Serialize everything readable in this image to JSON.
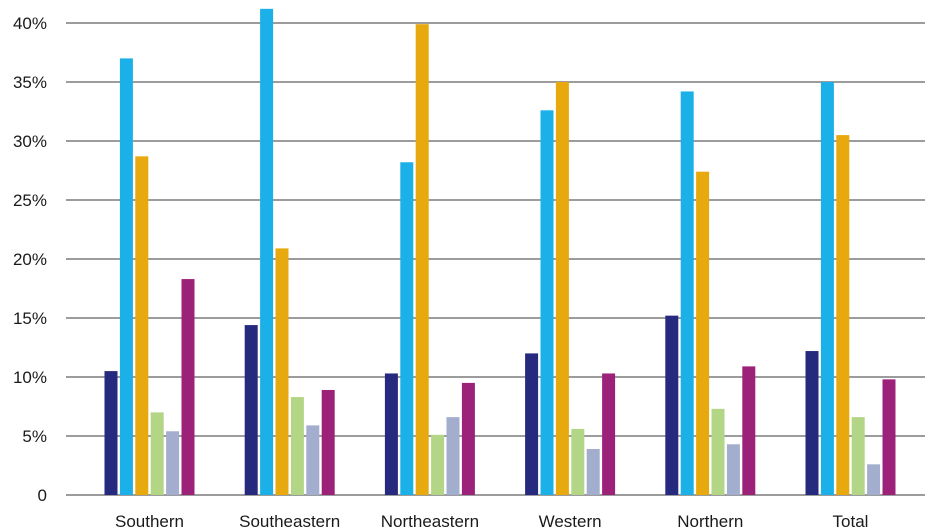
{
  "chart_data": {
    "type": "bar",
    "categories": [
      "Southern",
      "Southeastern",
      "Northeastern",
      "Western",
      "Northern",
      "Total"
    ],
    "y_tick_labels": [
      "0",
      "5%",
      "10%",
      "15%",
      "20%",
      "25%",
      "30%",
      "35%",
      "40%"
    ],
    "y_tick_values": [
      0,
      5,
      10,
      15,
      20,
      25,
      30,
      35,
      40
    ],
    "ylim": [
      0,
      40
    ],
    "grid": true,
    "legend": "none",
    "series": [
      {
        "color": "#262a7e",
        "values": [
          10.5,
          14.4,
          10.3,
          12.0,
          15.2,
          12.2
        ]
      },
      {
        "color": "#1bb1e8",
        "values": [
          37.0,
          41.2,
          28.2,
          32.6,
          34.2,
          35.0
        ]
      },
      {
        "color": "#e8a90e",
        "values": [
          28.7,
          20.9,
          39.9,
          35.0,
          27.4,
          30.5
        ]
      },
      {
        "color": "#b2d586",
        "values": [
          7.0,
          8.3,
          5.1,
          5.6,
          7.3,
          6.6
        ]
      },
      {
        "color": "#a3aece",
        "values": [
          5.4,
          5.9,
          6.6,
          3.9,
          4.3,
          2.6
        ]
      },
      {
        "color": "#9c2279",
        "values": [
          18.3,
          8.9,
          9.5,
          10.3,
          10.9,
          9.8
        ]
      }
    ]
  }
}
